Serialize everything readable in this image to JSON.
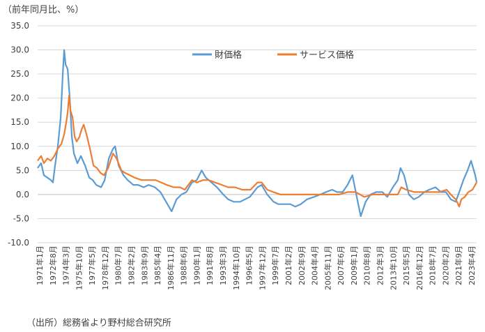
{
  "chart_data": {
    "type": "line",
    "title": "",
    "ylabel": "（前年同月比、%）",
    "xlabel": "",
    "ylim": [
      -10,
      35
    ],
    "yticks": [
      "35.0",
      "30.0",
      "25.0",
      "20.0",
      "15.0",
      "10.0",
      "5.0",
      "0.0",
      "-5.0",
      "-10.0"
    ],
    "x_start": "1971-01",
    "x_end": "2023-06",
    "x_tick_labels": [
      "1971年1月",
      "1972年8月",
      "1974年3月",
      "1975年10月",
      "1977年5月",
      "1978年12月",
      "1980年7月",
      "1982年2月",
      "1983年9月",
      "1985年4月",
      "1986年11月",
      "1988年6月",
      "1990年1月",
      "1991年8月",
      "1993年3月",
      "1994年10月",
      "1996年5月",
      "1997年12月",
      "1999年7月",
      "2001年2月",
      "2002年9月",
      "2004年4月",
      "2005年11月",
      "2007年6月",
      "2009年1月",
      "2010年8月",
      "2012年3月",
      "2013年10月",
      "2015年5月",
      "2016年12月",
      "2018年7月",
      "2020年2月",
      "2021年9月",
      "2023年4月"
    ],
    "legend_position": "top-right",
    "grid": true,
    "series": [
      {
        "name": "財価格",
        "color": "#5B9BD5",
        "points": [
          [
            "1971-01",
            5.5
          ],
          [
            "1971-06",
            6.5
          ],
          [
            "1971-10",
            4.0
          ],
          [
            "1972-03",
            3.5
          ],
          [
            "1972-08",
            3.0
          ],
          [
            "1972-11",
            2.5
          ],
          [
            "1973-02",
            6.0
          ],
          [
            "1973-06",
            10.0
          ],
          [
            "1973-10",
            16.0
          ],
          [
            "1974-01",
            25.0
          ],
          [
            "1974-03",
            30.0
          ],
          [
            "1974-05",
            27.0
          ],
          [
            "1974-08",
            26.0
          ],
          [
            "1974-11",
            20.0
          ],
          [
            "1975-02",
            12.0
          ],
          [
            "1975-05",
            8.5
          ],
          [
            "1975-10",
            6.5
          ],
          [
            "1976-03",
            8.0
          ],
          [
            "1976-09",
            6.0
          ],
          [
            "1977-03",
            3.5
          ],
          [
            "1977-08",
            3.0
          ],
          [
            "1978-01",
            2.0
          ],
          [
            "1978-08",
            1.5
          ],
          [
            "1979-01",
            3.0
          ],
          [
            "1979-07",
            7.5
          ],
          [
            "1980-01",
            9.5
          ],
          [
            "1980-04",
            10.0
          ],
          [
            "1980-09",
            6.0
          ],
          [
            "1981-04",
            4.0
          ],
          [
            "1981-10",
            3.0
          ],
          [
            "1982-06",
            2.0
          ],
          [
            "1983-01",
            2.0
          ],
          [
            "1983-09",
            1.5
          ],
          [
            "1984-04",
            2.0
          ],
          [
            "1985-01",
            1.5
          ],
          [
            "1985-09",
            0.5
          ],
          [
            "1986-05",
            -1.5
          ],
          [
            "1987-01",
            -3.5
          ],
          [
            "1987-08",
            -1.0
          ],
          [
            "1988-03",
            0.0
          ],
          [
            "1988-10",
            0.5
          ],
          [
            "1989-06",
            2.5
          ],
          [
            "1990-01",
            3.0
          ],
          [
            "1990-08",
            5.0
          ],
          [
            "1991-02",
            3.5
          ],
          [
            "1991-10",
            2.5
          ],
          [
            "1992-06",
            1.5
          ],
          [
            "1993-03",
            0.0
          ],
          [
            "1993-10",
            -1.0
          ],
          [
            "1994-06",
            -1.5
          ],
          [
            "1995-03",
            -1.5
          ],
          [
            "1995-10",
            -1.0
          ],
          [
            "1996-05",
            -0.5
          ],
          [
            "1997-04",
            1.5
          ],
          [
            "1997-10",
            2.0
          ],
          [
            "1998-06",
            0.0
          ],
          [
            "1999-03",
            -1.5
          ],
          [
            "1999-10",
            -2.0
          ],
          [
            "2000-06",
            -2.0
          ],
          [
            "2001-03",
            -2.0
          ],
          [
            "2001-10",
            -2.5
          ],
          [
            "2002-06",
            -2.0
          ],
          [
            "2003-03",
            -1.0
          ],
          [
            "2004-01",
            -0.5
          ],
          [
            "2004-10",
            0.0
          ],
          [
            "2005-06",
            0.5
          ],
          [
            "2006-03",
            1.0
          ],
          [
            "2006-10",
            0.5
          ],
          [
            "2007-06",
            0.5
          ],
          [
            "2008-01",
            2.0
          ],
          [
            "2008-08",
            4.0
          ],
          [
            "2009-03",
            -1.0
          ],
          [
            "2009-08",
            -4.5
          ],
          [
            "2010-03",
            -1.5
          ],
          [
            "2010-10",
            0.0
          ],
          [
            "2011-06",
            0.5
          ],
          [
            "2012-03",
            0.5
          ],
          [
            "2012-10",
            -0.5
          ],
          [
            "2013-06",
            1.5
          ],
          [
            "2014-01",
            3.0
          ],
          [
            "2014-05",
            5.5
          ],
          [
            "2014-10",
            4.0
          ],
          [
            "2015-05",
            0.0
          ],
          [
            "2015-12",
            -1.0
          ],
          [
            "2016-07",
            -0.5
          ],
          [
            "2017-03",
            0.5
          ],
          [
            "2017-10",
            1.0
          ],
          [
            "2018-07",
            1.5
          ],
          [
            "2019-03",
            0.5
          ],
          [
            "2019-10",
            0.5
          ],
          [
            "2020-05",
            -1.0
          ],
          [
            "2020-12",
            -1.5
          ],
          [
            "2021-05",
            0.5
          ],
          [
            "2021-11",
            3.0
          ],
          [
            "2022-05",
            5.0
          ],
          [
            "2022-10",
            7.0
          ],
          [
            "2023-01",
            5.5
          ],
          [
            "2023-04",
            4.0
          ],
          [
            "2023-06",
            2.5
          ]
        ]
      },
      {
        "name": "サービス価格",
        "color": "#ED7D31",
        "points": [
          [
            "1971-01",
            7.0
          ],
          [
            "1971-06",
            8.0
          ],
          [
            "1971-10",
            6.5
          ],
          [
            "1972-03",
            7.5
          ],
          [
            "1972-08",
            7.0
          ],
          [
            "1973-01",
            8.0
          ],
          [
            "1973-06",
            9.5
          ],
          [
            "1973-11",
            10.5
          ],
          [
            "1974-03",
            12.5
          ],
          [
            "1974-06",
            15.0
          ],
          [
            "1974-08",
            17.0
          ],
          [
            "1974-10",
            20.5
          ],
          [
            "1974-12",
            17.5
          ],
          [
            "1975-03",
            16.0
          ],
          [
            "1975-06",
            12.0
          ],
          [
            "1975-09",
            11.0
          ],
          [
            "1976-01",
            12.0
          ],
          [
            "1976-04",
            13.5
          ],
          [
            "1976-07",
            14.5
          ],
          [
            "1976-11",
            12.5
          ],
          [
            "1977-04",
            9.5
          ],
          [
            "1977-09",
            6.0
          ],
          [
            "1978-02",
            5.5
          ],
          [
            "1978-07",
            4.5
          ],
          [
            "1978-12",
            4.0
          ],
          [
            "1979-06",
            5.5
          ],
          [
            "1980-01",
            8.5
          ],
          [
            "1980-06",
            7.5
          ],
          [
            "1981-01",
            5.0
          ],
          [
            "1981-06",
            4.5
          ],
          [
            "1982-01",
            4.0
          ],
          [
            "1982-08",
            3.5
          ],
          [
            "1983-06",
            3.0
          ],
          [
            "1984-04",
            3.0
          ],
          [
            "1985-02",
            3.0
          ],
          [
            "1985-10",
            2.5
          ],
          [
            "1986-06",
            2.0
          ],
          [
            "1987-04",
            1.5
          ],
          [
            "1988-01",
            1.5
          ],
          [
            "1988-08",
            1.0
          ],
          [
            "1989-06",
            3.0
          ],
          [
            "1990-01",
            2.5
          ],
          [
            "1990-10",
            3.0
          ],
          [
            "1991-06",
            3.0
          ],
          [
            "1992-03",
            2.5
          ],
          [
            "1993-01",
            2.0
          ],
          [
            "1993-10",
            1.5
          ],
          [
            "1994-08",
            1.5
          ],
          [
            "1995-06",
            1.0
          ],
          [
            "1996-06",
            1.0
          ],
          [
            "1997-04",
            2.5
          ],
          [
            "1997-10",
            2.5
          ],
          [
            "1998-06",
            1.0
          ],
          [
            "1999-03",
            0.5
          ],
          [
            "2000-01",
            0.0
          ],
          [
            "2001-01",
            0.0
          ],
          [
            "2002-01",
            0.0
          ],
          [
            "2003-01",
            0.0
          ],
          [
            "2004-01",
            0.0
          ],
          [
            "2005-01",
            0.0
          ],
          [
            "2006-01",
            0.0
          ],
          [
            "2007-01",
            0.0
          ],
          [
            "2008-01",
            0.5
          ],
          [
            "2009-01",
            0.5
          ],
          [
            "2010-01",
            -0.5
          ],
          [
            "2011-01",
            0.0
          ],
          [
            "2012-01",
            0.0
          ],
          [
            "2013-01",
            0.0
          ],
          [
            "2014-01",
            0.0
          ],
          [
            "2014-06",
            1.5
          ],
          [
            "2015-01",
            1.0
          ],
          [
            "2016-01",
            0.5
          ],
          [
            "2017-01",
            0.5
          ],
          [
            "2018-01",
            0.5
          ],
          [
            "2019-01",
            0.5
          ],
          [
            "2019-11",
            1.0
          ],
          [
            "2020-05",
            0.0
          ],
          [
            "2020-12",
            -1.0
          ],
          [
            "2021-05",
            -2.5
          ],
          [
            "2021-08",
            -1.0
          ],
          [
            "2022-01",
            -0.5
          ],
          [
            "2022-06",
            0.5
          ],
          [
            "2022-12",
            1.0
          ],
          [
            "2023-04",
            2.0
          ],
          [
            "2023-06",
            2.5
          ]
        ]
      }
    ]
  },
  "source": "（出所）総務省より野村総合研究所"
}
